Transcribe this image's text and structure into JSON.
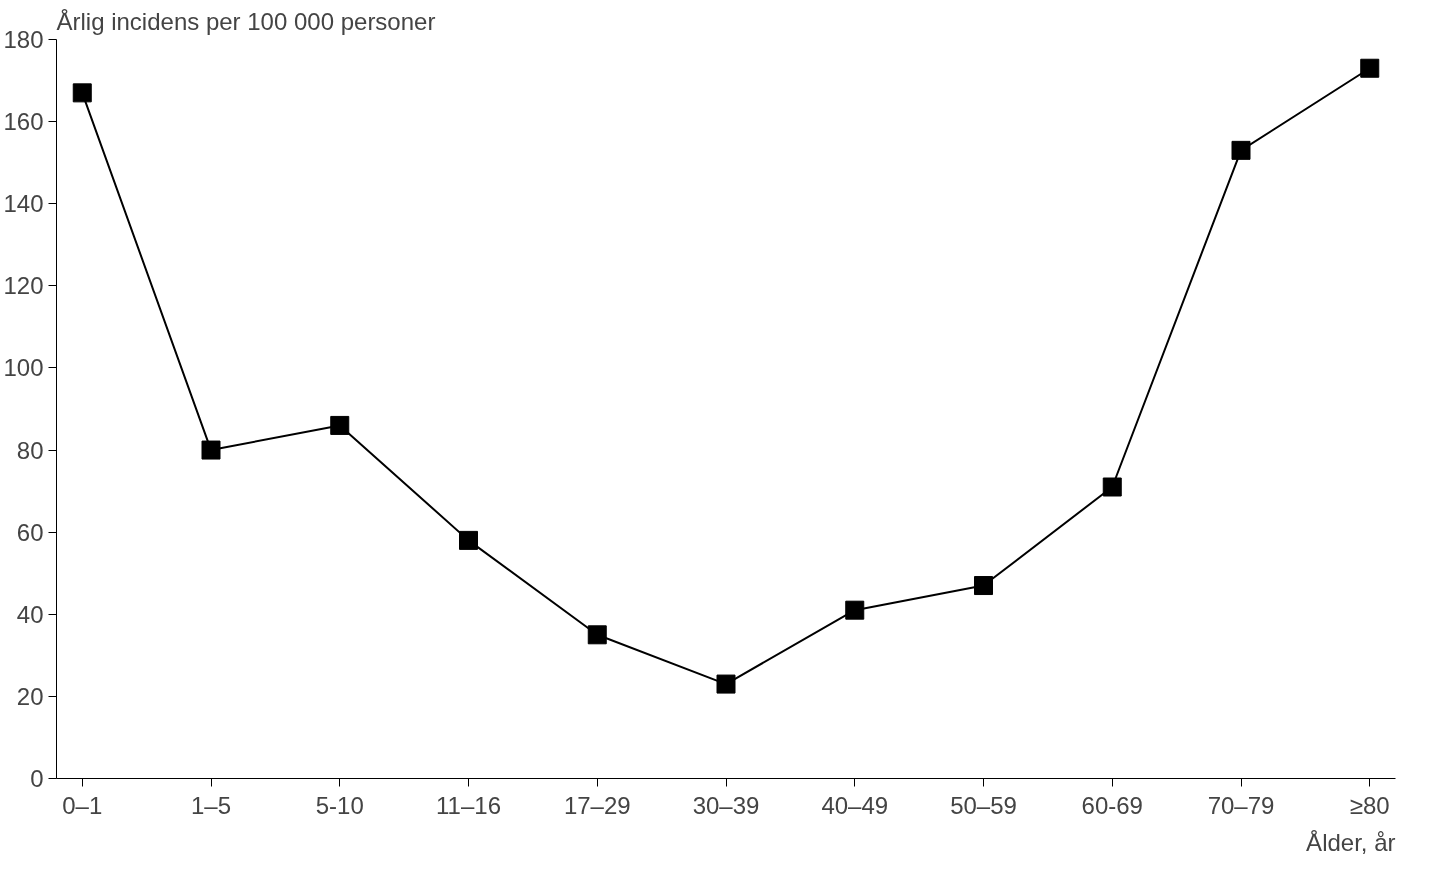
{
  "chart_data": {
    "type": "line",
    "ylabel": "Årlig incidens per 100 000 personer",
    "xlabel": "Ålder, år",
    "categories": [
      "0–1",
      "1–5",
      "5-10",
      "11–16",
      "17–29",
      "30–39",
      "40–49",
      "50–59",
      "60-69",
      "70–79",
      "≥80"
    ],
    "series": [
      {
        "color": "#000000",
        "values": [
          167,
          80,
          86,
          58,
          35,
          23,
          41,
          47,
          71,
          153,
          173
        ]
      }
    ],
    "ylim": [
      0,
      180
    ],
    "yticks": [
      0,
      20,
      40,
      60,
      80,
      100,
      120,
      140,
      160,
      180
    ],
    "grid": false,
    "marker": "square",
    "line_style": "solid"
  }
}
